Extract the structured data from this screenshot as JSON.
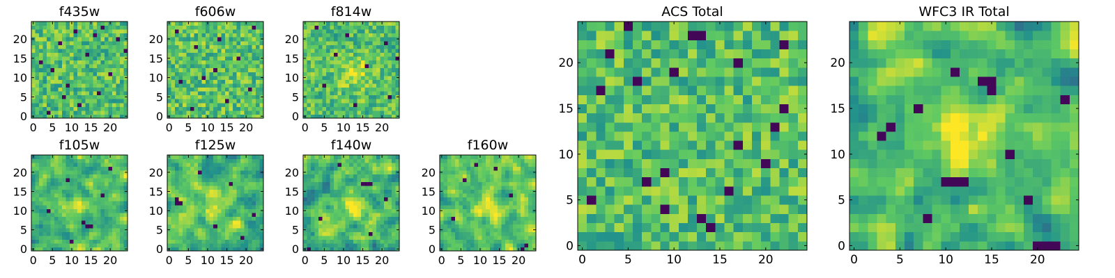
{
  "figure": {
    "background": "#ffffff",
    "colormap": [
      "#440154",
      "#3b528b",
      "#21918c",
      "#5ec962",
      "#fde725"
    ]
  },
  "chart_data": [
    {
      "type": "heatmap",
      "title": "f435w",
      "nrows": 25,
      "ncols": 25,
      "xlim": [
        -0.5,
        24.5
      ],
      "ylim": [
        -0.5,
        24.5
      ],
      "xticks": [
        0,
        5,
        10,
        15,
        20
      ],
      "yticks": [
        0,
        5,
        10,
        15,
        20
      ],
      "grid": false,
      "value_range": [
        0,
        1
      ],
      "seed": 11,
      "smooth": 0,
      "mean": 0.7,
      "spread": 0.2,
      "dark_spots": [
        [
          1,
          4
        ],
        [
          3,
          12
        ],
        [
          6,
          17
        ],
        [
          8,
          9
        ],
        [
          11,
          20
        ],
        [
          14,
          2
        ],
        [
          16,
          14
        ],
        [
          19,
          7
        ],
        [
          20,
          22
        ],
        [
          22,
          11
        ],
        [
          23,
          18
        ],
        [
          5,
          8
        ],
        [
          12,
          5
        ],
        [
          17,
          24
        ],
        [
          21,
          16
        ]
      ],
      "bright_spots": []
    },
    {
      "type": "heatmap",
      "title": "f606w",
      "nrows": 25,
      "ncols": 25,
      "xlim": [
        -0.5,
        24.5
      ],
      "ylim": [
        -0.5,
        24.5
      ],
      "xticks": [
        0,
        5,
        10,
        15,
        20
      ],
      "yticks": [
        0,
        5,
        10,
        15,
        20
      ],
      "grid": false,
      "value_range": [
        0,
        1
      ],
      "seed": 23,
      "smooth": 0,
      "mean": 0.72,
      "spread": 0.2,
      "dark_spots": [
        [
          2,
          6
        ],
        [
          4,
          15
        ],
        [
          7,
          21
        ],
        [
          9,
          3
        ],
        [
          12,
          12
        ],
        [
          15,
          18
        ],
        [
          18,
          7
        ],
        [
          20,
          13
        ],
        [
          22,
          2
        ],
        [
          23,
          22
        ],
        [
          10,
          9
        ]
      ],
      "bright_spots": []
    },
    {
      "type": "heatmap",
      "title": "f814w",
      "nrows": 25,
      "ncols": 25,
      "xlim": [
        -0.5,
        24.5
      ],
      "ylim": [
        -0.5,
        24.5
      ],
      "xticks": [
        0,
        5,
        10,
        15,
        20
      ],
      "yticks": [
        0,
        5,
        10,
        15,
        20
      ],
      "grid": false,
      "value_range": [
        0,
        1
      ],
      "seed": 37,
      "smooth": 0.3,
      "mean": 0.7,
      "spread": 0.2,
      "dark_spots": [
        [
          3,
          13
        ],
        [
          5,
          22
        ],
        [
          8,
          5
        ],
        [
          13,
          16
        ],
        [
          16,
          8
        ],
        [
          19,
          21
        ],
        [
          21,
          11
        ],
        [
          23,
          3
        ],
        [
          15,
          24
        ]
      ],
      "bright_spots": [
        [
          11,
          13,
          2.5,
          0.25
        ]
      ]
    },
    {
      "type": "heatmap",
      "title": "f105w",
      "nrows": 25,
      "ncols": 25,
      "xlim": [
        -0.5,
        24.5
      ],
      "ylim": [
        -0.5,
        24.5
      ],
      "xticks": [
        0,
        5,
        10,
        15,
        20
      ],
      "yticks": [
        0,
        5,
        10,
        15,
        20
      ],
      "grid": false,
      "value_range": [
        0,
        1
      ],
      "seed": 41,
      "smooth": 1,
      "mean": 0.7,
      "spread": 0.3,
      "dark_spots": [
        [
          6,
          14
        ],
        [
          6,
          15
        ],
        [
          7,
          13
        ],
        [
          10,
          4
        ],
        [
          14,
          18
        ],
        [
          18,
          9
        ],
        [
          2,
          10
        ],
        [
          21,
          20
        ]
      ],
      "bright_spots": [
        [
          11,
          12,
          2.5,
          0.2
        ]
      ]
    },
    {
      "type": "heatmap",
      "title": "f125w",
      "nrows": 25,
      "ncols": 25,
      "xlim": [
        -0.5,
        24.5
      ],
      "ylim": [
        -0.5,
        24.5
      ],
      "xticks": [
        0,
        5,
        10,
        15,
        20
      ],
      "yticks": [
        0,
        5,
        10,
        15,
        20
      ],
      "grid": false,
      "value_range": [
        0,
        1
      ],
      "seed": 53,
      "smooth": 1,
      "mean": 0.68,
      "spread": 0.3,
      "dark_spots": [
        [
          12,
          2
        ],
        [
          12,
          3
        ],
        [
          13,
          2
        ],
        [
          17,
          16
        ],
        [
          6,
          12
        ],
        [
          20,
          8
        ],
        [
          3,
          19
        ],
        [
          9,
          22
        ]
      ],
      "bright_spots": [
        [
          11,
          12,
          2.5,
          0.2
        ]
      ]
    },
    {
      "type": "heatmap",
      "title": "f140w",
      "nrows": 25,
      "ncols": 25,
      "xlim": [
        -0.5,
        24.5
      ],
      "ylim": [
        -0.5,
        24.5
      ],
      "xticks": [
        0,
        5,
        10,
        15,
        20
      ],
      "yticks": [
        0,
        5,
        10,
        15,
        20
      ],
      "grid": false,
      "value_range": [
        0,
        1
      ],
      "seed": 67,
      "smooth": 1,
      "mean": 0.66,
      "spread": 0.32,
      "dark_spots": [
        [
          17,
          15
        ],
        [
          17,
          16
        ],
        [
          17,
          17
        ],
        [
          0,
          1
        ],
        [
          8,
          4
        ],
        [
          13,
          21
        ],
        [
          22,
          9
        ],
        [
          4,
          17
        ]
      ],
      "bright_spots": [
        [
          11,
          12,
          2.5,
          0.25
        ]
      ]
    },
    {
      "type": "heatmap",
      "title": "f160w",
      "nrows": 25,
      "ncols": 25,
      "xlim": [
        -0.5,
        24.5
      ],
      "ylim": [
        -0.5,
        24.5
      ],
      "xticks": [
        0,
        5,
        10,
        15,
        20
      ],
      "yticks": [
        0,
        5,
        10,
        15,
        20
      ],
      "grid": false,
      "value_range": [
        0,
        1
      ],
      "seed": 79,
      "smooth": 1,
      "mean": 0.7,
      "spread": 0.3,
      "dark_spots": [
        [
          22,
          9
        ],
        [
          21,
          14
        ],
        [
          0,
          21
        ],
        [
          1,
          22
        ],
        [
          8,
          3
        ],
        [
          14,
          18
        ],
        [
          18,
          6
        ]
      ],
      "bright_spots": [
        [
          11,
          12,
          2.5,
          0.25
        ]
      ]
    },
    {
      "type": "heatmap",
      "title": "ACS Total",
      "nrows": 25,
      "ncols": 25,
      "xlim": [
        -0.5,
        24.5
      ],
      "ylim": [
        -0.5,
        24.5
      ],
      "xticks": [
        0,
        5,
        10,
        15,
        20
      ],
      "yticks": [
        0,
        5,
        10,
        15,
        20
      ],
      "grid": false,
      "value_range": [
        0,
        1
      ],
      "seed": 97,
      "smooth": 0,
      "mean": 0.7,
      "spread": 0.2,
      "dark_spots": [
        [
          24,
          5
        ],
        [
          23,
          12
        ],
        [
          23,
          13
        ],
        [
          21,
          3
        ],
        [
          20,
          17
        ],
        [
          13,
          21
        ],
        [
          8,
          9
        ],
        [
          7,
          7
        ],
        [
          5,
          1
        ],
        [
          4,
          9
        ],
        [
          3,
          13
        ],
        [
          2,
          14
        ],
        [
          22,
          22
        ],
        [
          17,
          2
        ],
        [
          11,
          17
        ],
        [
          15,
          22
        ],
        [
          6,
          16
        ],
        [
          9,
          20
        ],
        [
          18,
          6
        ],
        [
          19,
          10
        ]
      ],
      "bright_spots": []
    },
    {
      "type": "heatmap",
      "title": "WFC3 IR Total",
      "nrows": 25,
      "ncols": 25,
      "xlim": [
        -0.5,
        24.5
      ],
      "ylim": [
        -0.5,
        24.5
      ],
      "xticks": [
        0,
        5,
        10,
        15,
        20
      ],
      "yticks": [
        0,
        5,
        10,
        15,
        20
      ],
      "grid": false,
      "value_range": [
        0,
        1
      ],
      "seed": 113,
      "smooth": 1,
      "mean": 0.68,
      "spread": 0.3,
      "dark_spots": [
        [
          7,
          10
        ],
        [
          7,
          11
        ],
        [
          7,
          12
        ],
        [
          18,
          14
        ],
        [
          18,
          15
        ],
        [
          17,
          15
        ],
        [
          12,
          3
        ],
        [
          13,
          4
        ],
        [
          15,
          7
        ],
        [
          0,
          20
        ],
        [
          0,
          21
        ],
        [
          0,
          22
        ],
        [
          3,
          8
        ],
        [
          16,
          23
        ],
        [
          19,
          11
        ],
        [
          5,
          19
        ],
        [
          10,
          17
        ]
      ],
      "bright_spots": [
        [
          12,
          12,
          2.5,
          0.3
        ],
        [
          21,
          6,
          2,
          0.2
        ]
      ]
    }
  ]
}
